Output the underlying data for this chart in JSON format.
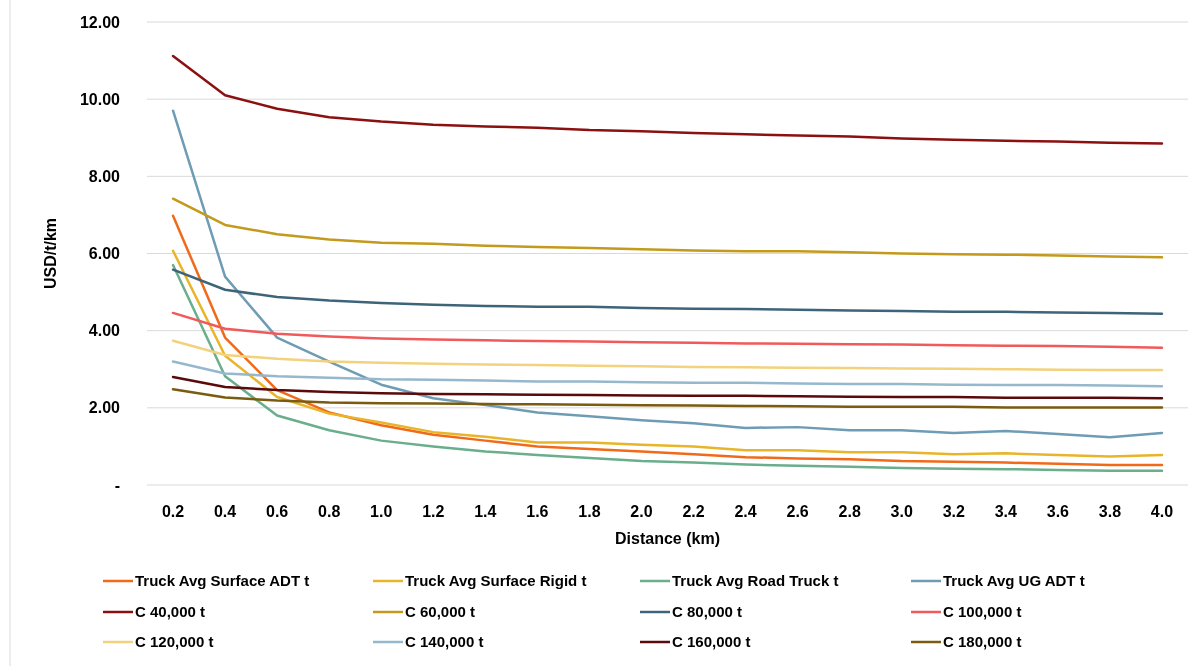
{
  "chart_data": {
    "type": "line",
    "xlabel": "Distance (km)",
    "ylabel": "USD/t/km",
    "categories": [
      "0.2",
      "0.4",
      "0.6",
      "0.8",
      "1.0",
      "1.2",
      "1.4",
      "1.6",
      "1.8",
      "2.0",
      "2.2",
      "2.4",
      "2.6",
      "2.8",
      "3.0",
      "3.2",
      "3.4",
      "3.6",
      "3.8",
      "4.0"
    ],
    "ylim": [
      0,
      12
    ],
    "yticks": [
      {
        "value": 0,
        "label": "-"
      },
      {
        "value": 2,
        "label": "2.00"
      },
      {
        "value": 4,
        "label": "4.00"
      },
      {
        "value": 6,
        "label": "6.00"
      },
      {
        "value": 8,
        "label": "8.00"
      },
      {
        "value": 10,
        "label": "10.00"
      },
      {
        "value": 12,
        "label": "12.00"
      }
    ],
    "grid": "y",
    "legend": "bottom",
    "marker": "none",
    "line_style": "solid",
    "series": [
      {
        "name": "Truck Avg Surface ADT t",
        "color": "#f06a1a",
        "values": [
          6.98,
          3.82,
          2.46,
          1.88,
          1.55,
          1.3,
          1.15,
          1.0,
          0.93,
          0.87,
          0.8,
          0.72,
          0.69,
          0.67,
          0.62,
          0.6,
          0.58,
          0.55,
          0.52,
          0.52
        ]
      },
      {
        "name": "Truck Avg Surface Rigid t",
        "color": "#e8b52a",
        "values": [
          6.07,
          3.35,
          2.28,
          1.85,
          1.62,
          1.37,
          1.25,
          1.1,
          1.1,
          1.04,
          1.0,
          0.9,
          0.9,
          0.85,
          0.85,
          0.8,
          0.82,
          0.78,
          0.74,
          0.78
        ]
      },
      {
        "name": "Truck Avg Road Truck t",
        "color": "#6aae8c",
        "values": [
          5.7,
          2.82,
          1.8,
          1.42,
          1.15,
          1.0,
          0.87,
          0.78,
          0.7,
          0.62,
          0.58,
          0.53,
          0.5,
          0.47,
          0.44,
          0.42,
          0.41,
          0.39,
          0.37,
          0.37
        ]
      },
      {
        "name": "Truck Avg UG ADT t",
        "color": "#6f9cb5",
        "values": [
          9.7,
          5.4,
          3.82,
          3.2,
          2.6,
          2.25,
          2.07,
          1.88,
          1.78,
          1.68,
          1.6,
          1.48,
          1.5,
          1.42,
          1.42,
          1.35,
          1.4,
          1.32,
          1.24,
          1.35
        ]
      },
      {
        "name": "C 40,000 t",
        "color": "#8b1010",
        "values": [
          11.12,
          10.1,
          9.75,
          9.53,
          9.42,
          9.34,
          9.29,
          9.26,
          9.2,
          9.17,
          9.12,
          9.09,
          9.06,
          9.03,
          8.98,
          8.95,
          8.92,
          8.9,
          8.87,
          8.85
        ]
      },
      {
        "name": "C 60,000 t",
        "color": "#c39a1c",
        "values": [
          7.42,
          6.74,
          6.5,
          6.36,
          6.28,
          6.25,
          6.2,
          6.17,
          6.14,
          6.11,
          6.08,
          6.06,
          6.06,
          6.03,
          6.0,
          5.98,
          5.97,
          5.95,
          5.92,
          5.9
        ]
      },
      {
        "name": "C 80,000 t",
        "color": "#3d6478",
        "values": [
          5.58,
          5.06,
          4.87,
          4.78,
          4.72,
          4.67,
          4.64,
          4.62,
          4.62,
          4.59,
          4.57,
          4.56,
          4.54,
          4.52,
          4.51,
          4.49,
          4.49,
          4.47,
          4.46,
          4.44
        ]
      },
      {
        "name": "C 100,000 t",
        "color": "#f05a5a",
        "values": [
          4.46,
          4.05,
          3.92,
          3.85,
          3.8,
          3.77,
          3.75,
          3.73,
          3.72,
          3.7,
          3.69,
          3.67,
          3.66,
          3.65,
          3.64,
          3.62,
          3.61,
          3.6,
          3.58,
          3.56
        ]
      },
      {
        "name": "C 120,000 t",
        "color": "#f2d27e",
        "values": [
          3.74,
          3.37,
          3.27,
          3.2,
          3.17,
          3.14,
          3.12,
          3.11,
          3.09,
          3.08,
          3.06,
          3.05,
          3.04,
          3.03,
          3.02,
          3.01,
          3.0,
          2.99,
          2.98,
          2.98
        ]
      },
      {
        "name": "C 140,000 t",
        "color": "#96b8cc",
        "values": [
          3.2,
          2.89,
          2.82,
          2.78,
          2.74,
          2.73,
          2.71,
          2.68,
          2.68,
          2.66,
          2.65,
          2.65,
          2.63,
          2.62,
          2.62,
          2.6,
          2.59,
          2.59,
          2.58,
          2.56
        ]
      },
      {
        "name": "C 160,000 t",
        "color": "#5a0a0a",
        "values": [
          2.8,
          2.54,
          2.46,
          2.41,
          2.38,
          2.36,
          2.35,
          2.34,
          2.33,
          2.32,
          2.31,
          2.31,
          2.3,
          2.29,
          2.28,
          2.28,
          2.26,
          2.26,
          2.26,
          2.25
        ]
      },
      {
        "name": "C 180,000 t",
        "color": "#7a5c10",
        "values": [
          2.48,
          2.27,
          2.19,
          2.14,
          2.12,
          2.11,
          2.1,
          2.09,
          2.08,
          2.07,
          2.06,
          2.05,
          2.04,
          2.03,
          2.03,
          2.03,
          2.01,
          2.01,
          2.01,
          2.01
        ]
      }
    ]
  }
}
